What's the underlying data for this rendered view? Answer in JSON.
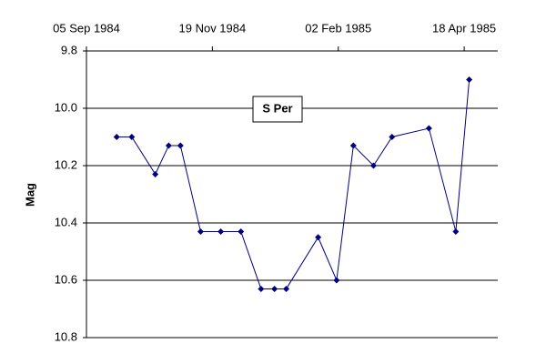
{
  "chart_data": {
    "type": "line",
    "annotation": "S Per",
    "y_label": "Mag",
    "y_inverted": true,
    "grid": true,
    "color": "#000080",
    "x": [
      "1984-09-23",
      "1984-10-02",
      "1984-10-16",
      "1984-10-24",
      "1984-10-31",
      "1984-11-12",
      "1984-11-24",
      "1984-12-06",
      "1984-12-18",
      "1984-12-26",
      "1985-01-02",
      "1985-01-21",
      "1985-02-01",
      "1985-02-11",
      "1985-02-23",
      "1985-03-06",
      "1985-03-28",
      "1985-04-13",
      "1985-04-21"
    ],
    "values": [
      10.1,
      10.1,
      10.23,
      10.13,
      10.13,
      10.43,
      10.43,
      10.43,
      10.63,
      10.63,
      10.63,
      10.45,
      10.6,
      10.13,
      10.2,
      10.1,
      10.07,
      10.43,
      9.9
    ],
    "xlim": [
      "1984-09-05",
      "1985-05-08"
    ],
    "xticks": [
      {
        "value": "1984-09-05",
        "label": "05 Sep 1984"
      },
      {
        "value": "1984-11-19",
        "label": "19 Nov 1984"
      },
      {
        "value": "1985-02-02",
        "label": "02 Feb 1985"
      },
      {
        "value": "1985-04-18",
        "label": "18 Apr 1985"
      }
    ],
    "ylim": [
      9.8,
      10.8
    ],
    "yticks": [
      9.8,
      {
        "value": 10,
        "label": "10.0"
      },
      10.2,
      10.4,
      10.6,
      10.8
    ]
  }
}
